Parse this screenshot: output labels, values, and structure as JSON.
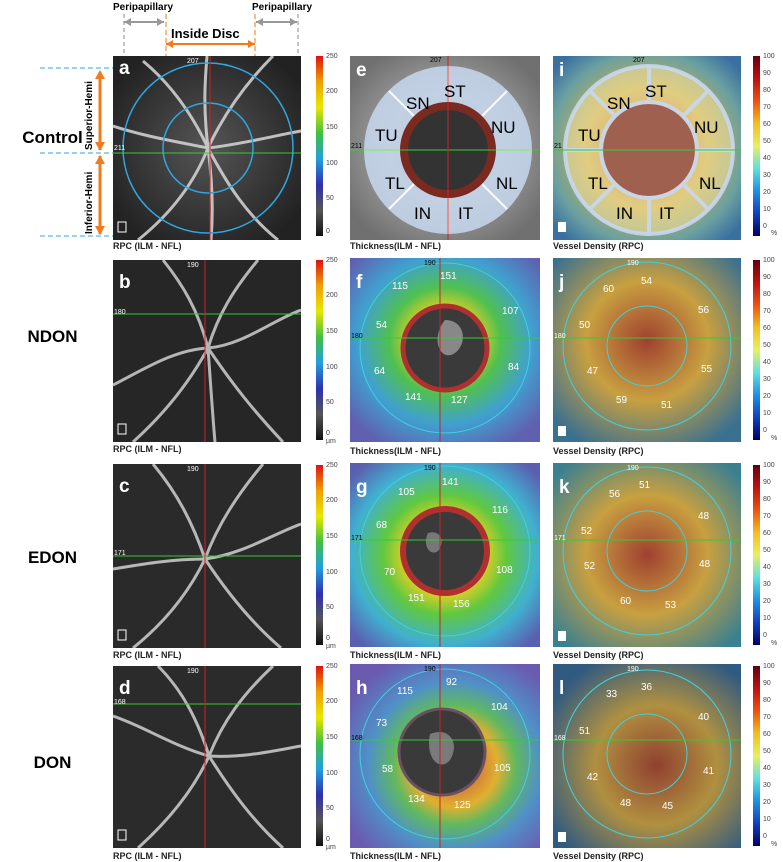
{
  "header": {
    "peripapillary_left": "Peripapillary",
    "inside_disc": "Inside Disc",
    "peripapillary_right": "Peripapillary",
    "superior_hemi": "Superior-Hemi",
    "inferior_hemi": "Inferior-Hemi"
  },
  "rows": [
    {
      "label": "Control"
    },
    {
      "label": "NDON"
    },
    {
      "label": "EDON"
    },
    {
      "label": "DON"
    }
  ],
  "panel_letters": [
    "a",
    "b",
    "c",
    "d",
    "e",
    "f",
    "g",
    "h",
    "i",
    "j",
    "k",
    "l"
  ],
  "captions": {
    "rpc": "RPC (ILM - NFL)",
    "thickness": "Thickness(ILM - NFL)",
    "vessel": "Vessel Density (RPC)"
  },
  "scan_markers": {
    "a_top": "207",
    "a_left": "211",
    "b_top": "190",
    "b_left": "180",
    "c_top": "190",
    "c_left": "171",
    "d_top": "190",
    "d_left": "168",
    "e_top": "207",
    "e_left": "211",
    "f_top": "190",
    "f_left": "180",
    "g_top": "190",
    "g_left": "171",
    "h_top": "190",
    "h_left": "168",
    "i_top": "207",
    "i_left": "21",
    "j_top": "190",
    "j_left": "180",
    "k_top": "190",
    "k_left": "171",
    "l_top": "190",
    "l_left": "168"
  },
  "sectors": {
    "ST": "ST",
    "SN": "SN",
    "NU": "NU",
    "TU": "TU",
    "NL": "NL",
    "TL": "TL",
    "IN": "IN",
    "IT": "IT"
  },
  "thickness_values": {
    "f": {
      "st": "151",
      "sn": "115",
      "nu": "107",
      "tu": "54",
      "nl": "84",
      "tl": "64",
      "in": "141",
      "it": "127"
    },
    "g": {
      "st": "141",
      "sn": "105",
      "nu": "116",
      "tu": "68",
      "nl": "108",
      "tl": "70",
      "in": "151",
      "it": "156"
    },
    "h": {
      "st": "92",
      "sn": "115",
      "nu": "104",
      "tu": "73",
      "nl": "105",
      "tl": "58",
      "in": "134",
      "it": "125"
    }
  },
  "density_values": {
    "j": {
      "st": "54",
      "sn": "60",
      "nu": "56",
      "tu": "50",
      "nl": "55",
      "tl": "47",
      "in": "59",
      "it": "51"
    },
    "k": {
      "st": "51",
      "sn": "56",
      "nu": "48",
      "tu": "52",
      "nl": "48",
      "tl": "52",
      "in": "60",
      "it": "53"
    },
    "l": {
      "st": "36",
      "sn": "33",
      "nu": "40",
      "tu": "51",
      "nl": "41",
      "tl": "42",
      "in": "48",
      "it": "45"
    }
  },
  "thickness_scale": [
    "250",
    "200",
    "150",
    "100",
    "50",
    "0",
    "µm"
  ],
  "density_scale": [
    "100",
    "90",
    "80",
    "70",
    "60",
    "50",
    "40",
    "30",
    "20",
    "10",
    "0",
    "%"
  ],
  "colors": {
    "orange": "#f07a1e",
    "cyan": "#2fa6e0",
    "scan_green": "#33cc33",
    "scan_red": "#cc2222"
  }
}
